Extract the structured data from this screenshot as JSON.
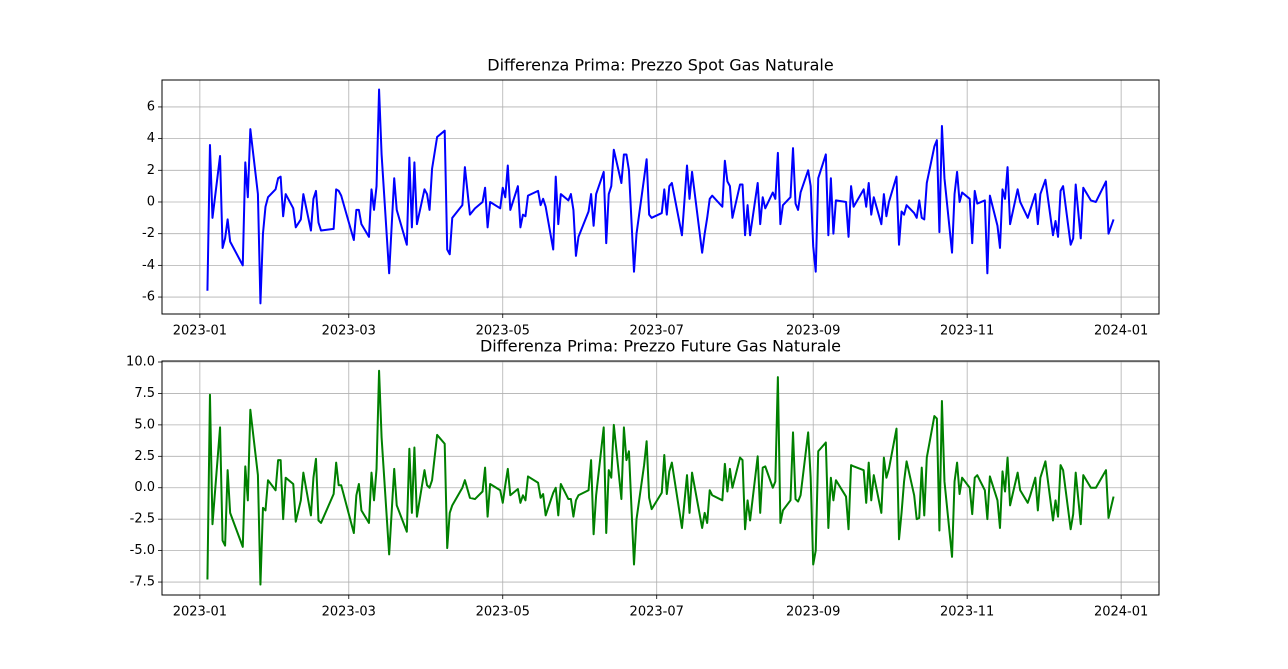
{
  "chart_data": [
    {
      "type": "line",
      "title": "Differenza Prima: Prezzo Spot Gas Naturale",
      "color": "#0000ff",
      "grid": true,
      "x": [
        "2023-01-04",
        "2023-01-05",
        "2023-01-06",
        "2023-01-09",
        "2023-01-10",
        "2023-01-11",
        "2023-01-12",
        "2023-01-13",
        "2023-01-18",
        "2023-01-19",
        "2023-01-20",
        "2023-01-21",
        "2023-01-24",
        "2023-01-25",
        "2023-01-26",
        "2023-01-27",
        "2023-01-28",
        "2023-01-31",
        "2023-02-01",
        "2023-02-02",
        "2023-02-03",
        "2023-02-04",
        "2023-02-07",
        "2023-02-08",
        "2023-02-10",
        "2023-02-11",
        "2023-02-14",
        "2023-02-15",
        "2023-02-16",
        "2023-02-17",
        "2023-02-18",
        "2023-02-23",
        "2023-02-24",
        "2023-02-25",
        "2023-02-26",
        "2023-03-03",
        "2023-03-04",
        "2023-03-05",
        "2023-03-06",
        "2023-03-09",
        "2023-03-10",
        "2023-03-11",
        "2023-03-12",
        "2023-03-13",
        "2023-03-14",
        "2023-03-17",
        "2023-03-19",
        "2023-03-20",
        "2023-03-24",
        "2023-03-25",
        "2023-03-26",
        "2023-03-27",
        "2023-03-28",
        "2023-03-31",
        "2023-04-01",
        "2023-04-02",
        "2023-04-03",
        "2023-04-05",
        "2023-04-08",
        "2023-04-09",
        "2023-04-10",
        "2023-04-11",
        "2023-04-15",
        "2023-04-16",
        "2023-04-18",
        "2023-04-20",
        "2023-04-23",
        "2023-04-24",
        "2023-04-25",
        "2023-04-26",
        "2023-04-30",
        "2023-05-01",
        "2023-05-02",
        "2023-05-03",
        "2023-05-04",
        "2023-05-07",
        "2023-05-08",
        "2023-05-09",
        "2023-05-10",
        "2023-05-11",
        "2023-05-15",
        "2023-05-16",
        "2023-05-17",
        "2023-05-18",
        "2023-05-21",
        "2023-05-22",
        "2023-05-23",
        "2023-05-24",
        "2023-05-27",
        "2023-05-28",
        "2023-05-29",
        "2023-05-30",
        "2023-05-31",
        "2023-06-04",
        "2023-06-05",
        "2023-06-06",
        "2023-06-07",
        "2023-06-10",
        "2023-06-11",
        "2023-06-12",
        "2023-06-13",
        "2023-06-14",
        "2023-06-17",
        "2023-06-18",
        "2023-06-19",
        "2023-06-20",
        "2023-06-22",
        "2023-06-23",
        "2023-06-26",
        "2023-06-27",
        "2023-06-28",
        "2023-06-29",
        "2023-07-03",
        "2023-07-04",
        "2023-07-05",
        "2023-07-06",
        "2023-07-07",
        "2023-07-11",
        "2023-07-13",
        "2023-07-14",
        "2023-07-15",
        "2023-07-19",
        "2023-07-20",
        "2023-07-21",
        "2023-07-22",
        "2023-07-23",
        "2023-07-27",
        "2023-07-28",
        "2023-07-29",
        "2023-07-30",
        "2023-07-31",
        "2023-08-03",
        "2023-08-04",
        "2023-08-05",
        "2023-08-06",
        "2023-08-07",
        "2023-08-10",
        "2023-08-11",
        "2023-08-12",
        "2023-08-13",
        "2023-08-16",
        "2023-08-17",
        "2023-08-18",
        "2023-08-19",
        "2023-08-20",
        "2023-08-23",
        "2023-08-24",
        "2023-08-25",
        "2023-08-26",
        "2023-08-27",
        "2023-08-30",
        "2023-08-31",
        "2023-09-01",
        "2023-09-02",
        "2023-09-03",
        "2023-09-06",
        "2023-09-07",
        "2023-09-08",
        "2023-09-09",
        "2023-09-10",
        "2023-09-14",
        "2023-09-15",
        "2023-09-16",
        "2023-09-17",
        "2023-09-21",
        "2023-09-22",
        "2023-09-23",
        "2023-09-24",
        "2023-09-25",
        "2023-09-28",
        "2023-09-29",
        "2023-09-30",
        "2023-10-01",
        "2023-10-04",
        "2023-10-05",
        "2023-10-06",
        "2023-10-07",
        "2023-10-08",
        "2023-10-11",
        "2023-10-12",
        "2023-10-13",
        "2023-10-14",
        "2023-10-15",
        "2023-10-16",
        "2023-10-19",
        "2023-10-20",
        "2023-10-21",
        "2023-10-22",
        "2023-10-23",
        "2023-10-26",
        "2023-10-27",
        "2023-10-28",
        "2023-10-29",
        "2023-10-30",
        "2023-11-02",
        "2023-11-03",
        "2023-11-04",
        "2023-11-05",
        "2023-11-08",
        "2023-11-09",
        "2023-11-10",
        "2023-11-13",
        "2023-11-14",
        "2023-11-15",
        "2023-11-16",
        "2023-11-17",
        "2023-11-18",
        "2023-11-21",
        "2023-11-22",
        "2023-11-25",
        "2023-11-26",
        "2023-11-28",
        "2023-11-29",
        "2023-11-30",
        "2023-12-02",
        "2023-12-05",
        "2023-12-06",
        "2023-12-07",
        "2023-12-08",
        "2023-12-09",
        "2023-12-12",
        "2023-12-13",
        "2023-12-14",
        "2023-12-16",
        "2023-12-17",
        "2023-12-20",
        "2023-12-22",
        "2023-12-26",
        "2023-12-27",
        "2023-12-29"
      ],
      "values": [
        -5.6,
        3.6,
        -1.0,
        2.9,
        -2.9,
        -2.3,
        -1.1,
        -2.5,
        -4.0,
        2.5,
        0.3,
        4.6,
        0.5,
        -6.4,
        -2.0,
        -0.3,
        0.3,
        0.8,
        1.5,
        1.6,
        -0.9,
        0.5,
        -0.4,
        -1.6,
        -1.1,
        0.5,
        -1.8,
        0.2,
        0.7,
        -1.3,
        -1.8,
        -1.7,
        0.8,
        0.7,
        0.4,
        -2.4,
        -0.5,
        -0.5,
        -1.4,
        -2.2,
        0.8,
        -0.5,
        1.0,
        7.1,
        3.0,
        -4.5,
        1.5,
        -0.5,
        -2.7,
        2.8,
        -1.6,
        2.5,
        -1.4,
        0.8,
        0.5,
        -0.5,
        2.1,
        4.1,
        4.5,
        -3.0,
        -3.3,
        -1.0,
        -0.2,
        2.2,
        -0.8,
        -0.4,
        0.0,
        0.9,
        -1.6,
        0.0,
        -0.4,
        0.9,
        0.3,
        2.3,
        -0.5,
        1.0,
        -1.6,
        -0.8,
        -0.9,
        0.4,
        0.7,
        -0.2,
        0.2,
        -0.3,
        -3.0,
        1.6,
        -1.4,
        0.5,
        0.1,
        0.5,
        -0.5,
        -3.4,
        -2.2,
        -0.6,
        0.5,
        -1.5,
        0.5,
        1.9,
        -2.6,
        0.5,
        1.0,
        3.3,
        1.2,
        3.0,
        3.0,
        2.0,
        -4.4,
        -2.0,
        1.5,
        2.7,
        -0.8,
        -1.0,
        -0.7,
        0.8,
        -0.8,
        1.0,
        1.2,
        -2.1,
        2.3,
        0.2,
        1.9,
        -3.2,
        -2.0,
        -1.0,
        0.2,
        0.4,
        -0.3,
        2.6,
        1.3,
        1.0,
        -1.0,
        1.1,
        1.1,
        -2.1,
        -0.2,
        -2.1,
        1.2,
        -1.4,
        0.3,
        -0.4,
        0.6,
        0.2,
        3.1,
        -1.4,
        -0.2,
        0.3,
        3.4,
        -0.1,
        -0.5,
        0.6,
        2.0,
        1.0,
        -2.8,
        -4.4,
        1.5,
        3.0,
        -2.1,
        1.5,
        -2.0,
        0.1,
        0.0,
        -2.2,
        1.0,
        -0.3,
        0.8,
        -0.3,
        1.2,
        -0.8,
        0.3,
        -1.4,
        0.5,
        -0.9,
        0.0,
        1.6,
        -2.7,
        -0.6,
        -0.8,
        -0.2,
        -0.7,
        -1.0,
        0.1,
        -1.0,
        -1.1,
        1.2,
        3.5,
        3.9,
        -1.9,
        4.8,
        1.5,
        -3.2,
        0.5,
        1.9,
        0.0,
        0.6,
        0.2,
        -2.6,
        0.7,
        -0.1,
        0.1,
        -4.5,
        0.4,
        -1.5,
        -2.9,
        0.8,
        0.2,
        2.2,
        -1.4,
        0.8,
        0.0,
        -1.0,
        -0.5,
        0.5,
        -1.4,
        0.5,
        1.4,
        -2.1,
        -1.2,
        -2.2,
        0.7,
        1.0,
        -2.7,
        -2.3,
        1.1,
        -2.3,
        0.9,
        0.1,
        0.0,
        1.3,
        -2.0,
        -1.1
      ],
      "xlim": [
        "2022-12-17",
        "2024-01-16"
      ],
      "xticks": [
        {
          "value": "2023-01-01",
          "label": "2023-01"
        },
        {
          "value": "2023-03-01",
          "label": "2023-03"
        },
        {
          "value": "2023-05-01",
          "label": "2023-05"
        },
        {
          "value": "2023-07-01",
          "label": "2023-07"
        },
        {
          "value": "2023-09-01",
          "label": "2023-09"
        },
        {
          "value": "2023-11-01",
          "label": "2023-11"
        },
        {
          "value": "2024-01-01",
          "label": "2024-01"
        }
      ],
      "ylim": [
        -7.07,
        7.7
      ],
      "yticks": [
        -6,
        -4,
        -2,
        0,
        2,
        4,
        6
      ]
    },
    {
      "type": "line",
      "title": "Differenza Prima: Prezzo Future Gas Naturale",
      "color": "#008000",
      "grid": true,
      "x": [
        "2023-01-04",
        "2023-01-05",
        "2023-01-06",
        "2023-01-09",
        "2023-01-10",
        "2023-01-11",
        "2023-01-12",
        "2023-01-13",
        "2023-01-18",
        "2023-01-19",
        "2023-01-20",
        "2023-01-21",
        "2023-01-24",
        "2023-01-25",
        "2023-01-26",
        "2023-01-27",
        "2023-01-28",
        "2023-01-31",
        "2023-02-01",
        "2023-02-02",
        "2023-02-03",
        "2023-02-04",
        "2023-02-07",
        "2023-02-08",
        "2023-02-10",
        "2023-02-11",
        "2023-02-14",
        "2023-02-15",
        "2023-02-16",
        "2023-02-17",
        "2023-02-18",
        "2023-02-23",
        "2023-02-24",
        "2023-02-25",
        "2023-02-26",
        "2023-03-03",
        "2023-03-04",
        "2023-03-05",
        "2023-03-06",
        "2023-03-09",
        "2023-03-10",
        "2023-03-11",
        "2023-03-12",
        "2023-03-13",
        "2023-03-14",
        "2023-03-17",
        "2023-03-19",
        "2023-03-20",
        "2023-03-24",
        "2023-03-25",
        "2023-03-26",
        "2023-03-27",
        "2023-03-28",
        "2023-03-31",
        "2023-04-01",
        "2023-04-02",
        "2023-04-03",
        "2023-04-05",
        "2023-04-08",
        "2023-04-09",
        "2023-04-10",
        "2023-04-11",
        "2023-04-15",
        "2023-04-16",
        "2023-04-18",
        "2023-04-20",
        "2023-04-23",
        "2023-04-24",
        "2023-04-25",
        "2023-04-26",
        "2023-04-30",
        "2023-05-01",
        "2023-05-02",
        "2023-05-03",
        "2023-05-04",
        "2023-05-07",
        "2023-05-08",
        "2023-05-09",
        "2023-05-10",
        "2023-05-11",
        "2023-05-15",
        "2023-05-16",
        "2023-05-17",
        "2023-05-18",
        "2023-05-21",
        "2023-05-22",
        "2023-05-23",
        "2023-05-24",
        "2023-05-27",
        "2023-05-28",
        "2023-05-29",
        "2023-05-30",
        "2023-05-31",
        "2023-06-04",
        "2023-06-05",
        "2023-06-06",
        "2023-06-07",
        "2023-06-10",
        "2023-06-11",
        "2023-06-12",
        "2023-06-13",
        "2023-06-14",
        "2023-06-17",
        "2023-06-18",
        "2023-06-19",
        "2023-06-20",
        "2023-06-22",
        "2023-06-23",
        "2023-06-26",
        "2023-06-27",
        "2023-06-28",
        "2023-06-29",
        "2023-07-03",
        "2023-07-04",
        "2023-07-05",
        "2023-07-06",
        "2023-07-07",
        "2023-07-11",
        "2023-07-13",
        "2023-07-14",
        "2023-07-15",
        "2023-07-19",
        "2023-07-20",
        "2023-07-21",
        "2023-07-22",
        "2023-07-23",
        "2023-07-27",
        "2023-07-28",
        "2023-07-29",
        "2023-07-30",
        "2023-07-31",
        "2023-08-03",
        "2023-08-04",
        "2023-08-05",
        "2023-08-06",
        "2023-08-07",
        "2023-08-10",
        "2023-08-11",
        "2023-08-12",
        "2023-08-13",
        "2023-08-16",
        "2023-08-17",
        "2023-08-18",
        "2023-08-19",
        "2023-08-20",
        "2023-08-23",
        "2023-08-24",
        "2023-08-25",
        "2023-08-26",
        "2023-08-27",
        "2023-08-30",
        "2023-08-31",
        "2023-09-01",
        "2023-09-02",
        "2023-09-03",
        "2023-09-06",
        "2023-09-07",
        "2023-09-08",
        "2023-09-09",
        "2023-09-10",
        "2023-09-14",
        "2023-09-15",
        "2023-09-16",
        "2023-09-17",
        "2023-09-21",
        "2023-09-22",
        "2023-09-23",
        "2023-09-24",
        "2023-09-25",
        "2023-09-28",
        "2023-09-29",
        "2023-09-30",
        "2023-10-01",
        "2023-10-04",
        "2023-10-05",
        "2023-10-06",
        "2023-10-07",
        "2023-10-08",
        "2023-10-11",
        "2023-10-12",
        "2023-10-13",
        "2023-10-14",
        "2023-10-15",
        "2023-10-16",
        "2023-10-19",
        "2023-10-20",
        "2023-10-21",
        "2023-10-22",
        "2023-10-23",
        "2023-10-26",
        "2023-10-27",
        "2023-10-28",
        "2023-10-29",
        "2023-10-30",
        "2023-11-02",
        "2023-11-03",
        "2023-11-04",
        "2023-11-05",
        "2023-11-08",
        "2023-11-09",
        "2023-11-10",
        "2023-11-13",
        "2023-11-14",
        "2023-11-15",
        "2023-11-16",
        "2023-11-17",
        "2023-11-18",
        "2023-11-21",
        "2023-11-22",
        "2023-11-25",
        "2023-11-26",
        "2023-11-28",
        "2023-11-29",
        "2023-11-30",
        "2023-12-02",
        "2023-12-05",
        "2023-12-06",
        "2023-12-07",
        "2023-12-08",
        "2023-12-09",
        "2023-12-12",
        "2023-12-13",
        "2023-12-14",
        "2023-12-16",
        "2023-12-17",
        "2023-12-20",
        "2023-12-22",
        "2023-12-26",
        "2023-12-27",
        "2023-12-29"
      ],
      "values": [
        -7.3,
        7.4,
        -2.9,
        4.8,
        -4.2,
        -4.6,
        1.4,
        -2.0,
        -4.7,
        1.7,
        -1.0,
        6.2,
        1.0,
        -7.7,
        -1.6,
        -1.8,
        0.6,
        -0.2,
        2.2,
        2.2,
        -2.5,
        0.8,
        0.3,
        -2.7,
        -1.0,
        1.2,
        -2.2,
        0.8,
        2.3,
        -2.6,
        -2.8,
        -0.5,
        2.0,
        0.2,
        0.2,
        -3.6,
        -0.6,
        0.3,
        -1.8,
        -2.8,
        1.2,
        -1.0,
        1.5,
        9.3,
        4.0,
        -5.3,
        1.5,
        -1.4,
        -3.5,
        3.1,
        -2.0,
        3.2,
        -2.3,
        1.4,
        0.2,
        0.0,
        0.6,
        4.2,
        3.5,
        -4.8,
        -2.0,
        -1.4,
        0.0,
        0.6,
        -0.8,
        -0.9,
        -0.3,
        1.6,
        -2.3,
        0.3,
        -0.2,
        -1.2,
        0.2,
        1.5,
        -0.6,
        -0.1,
        -1.2,
        -0.6,
        -1.0,
        0.9,
        0.4,
        -0.8,
        -0.5,
        -2.2,
        -0.4,
        0.0,
        -2.2,
        0.3,
        -0.9,
        -0.9,
        -2.3,
        -1.0,
        -0.6,
        -0.2,
        2.2,
        -3.7,
        -0.6,
        4.8,
        -3.6,
        1.4,
        0.8,
        5.0,
        -0.9,
        4.8,
        2.2,
        2.9,
        -6.1,
        -2.5,
        1.8,
        3.7,
        -0.8,
        -1.7,
        -0.4,
        2.6,
        -0.5,
        1.3,
        2.0,
        -3.2,
        1.0,
        -2.0,
        1.2,
        -3.2,
        -2.0,
        -2.8,
        -0.2,
        -0.6,
        -1.0,
        1.9,
        -0.3,
        1.5,
        0.0,
        2.4,
        2.2,
        -3.3,
        -1.0,
        -2.6,
        2.5,
        -2.0,
        1.6,
        1.7,
        0.0,
        0.5,
        8.8,
        -2.8,
        -1.8,
        -1.0,
        4.4,
        -0.9,
        -1.1,
        -0.6,
        4.4,
        0.8,
        -6.1,
        -5.0,
        2.9,
        3.6,
        -3.2,
        0.8,
        -1.0,
        0.6,
        -0.7,
        -3.3,
        1.8,
        1.7,
        1.4,
        -1.2,
        2.0,
        -1.0,
        1.0,
        -2.0,
        2.4,
        0.8,
        1.5,
        4.7,
        -4.1,
        -2.0,
        0.5,
        2.1,
        -0.6,
        -2.5,
        -2.4,
        1.6,
        -2.2,
        2.4,
        5.7,
        5.5,
        -3.4,
        6.9,
        0.5,
        -5.5,
        0.5,
        2.0,
        -0.5,
        0.8,
        0.0,
        -2.1,
        0.8,
        1.0,
        -0.2,
        -2.5,
        0.9,
        -1.0,
        -3.2,
        1.3,
        -0.3,
        2.4,
        -1.4,
        1.2,
        -0.2,
        -1.2,
        -0.6,
        0.8,
        -1.8,
        0.8,
        2.1,
        -2.6,
        -1.0,
        -2.3,
        1.8,
        1.4,
        -3.3,
        -2.1,
        1.2,
        -2.9,
        1.0,
        0.0,
        0.0,
        1.4,
        -2.4,
        -0.7
      ],
      "xlim": [
        "2022-12-17",
        "2024-01-16"
      ],
      "xticks": [
        {
          "value": "2023-01-01",
          "label": "2023-01"
        },
        {
          "value": "2023-03-01",
          "label": "2023-03"
        },
        {
          "value": "2023-05-01",
          "label": "2023-05"
        },
        {
          "value": "2023-07-01",
          "label": "2023-07"
        },
        {
          "value": "2023-09-01",
          "label": "2023-09"
        },
        {
          "value": "2023-11-01",
          "label": "2023-11"
        },
        {
          "value": "2024-01-01",
          "label": "2024-01"
        }
      ],
      "ylim": [
        -8.53,
        10.08
      ],
      "yticks": [
        -7.5,
        {
          "value": -5,
          "label": "-5.0"
        },
        -2.5,
        {
          "value": 0,
          "label": "0.0"
        },
        2.5,
        {
          "value": 5,
          "label": "5.0"
        },
        7.5,
        {
          "value": 10,
          "label": "10.0"
        }
      ]
    }
  ]
}
